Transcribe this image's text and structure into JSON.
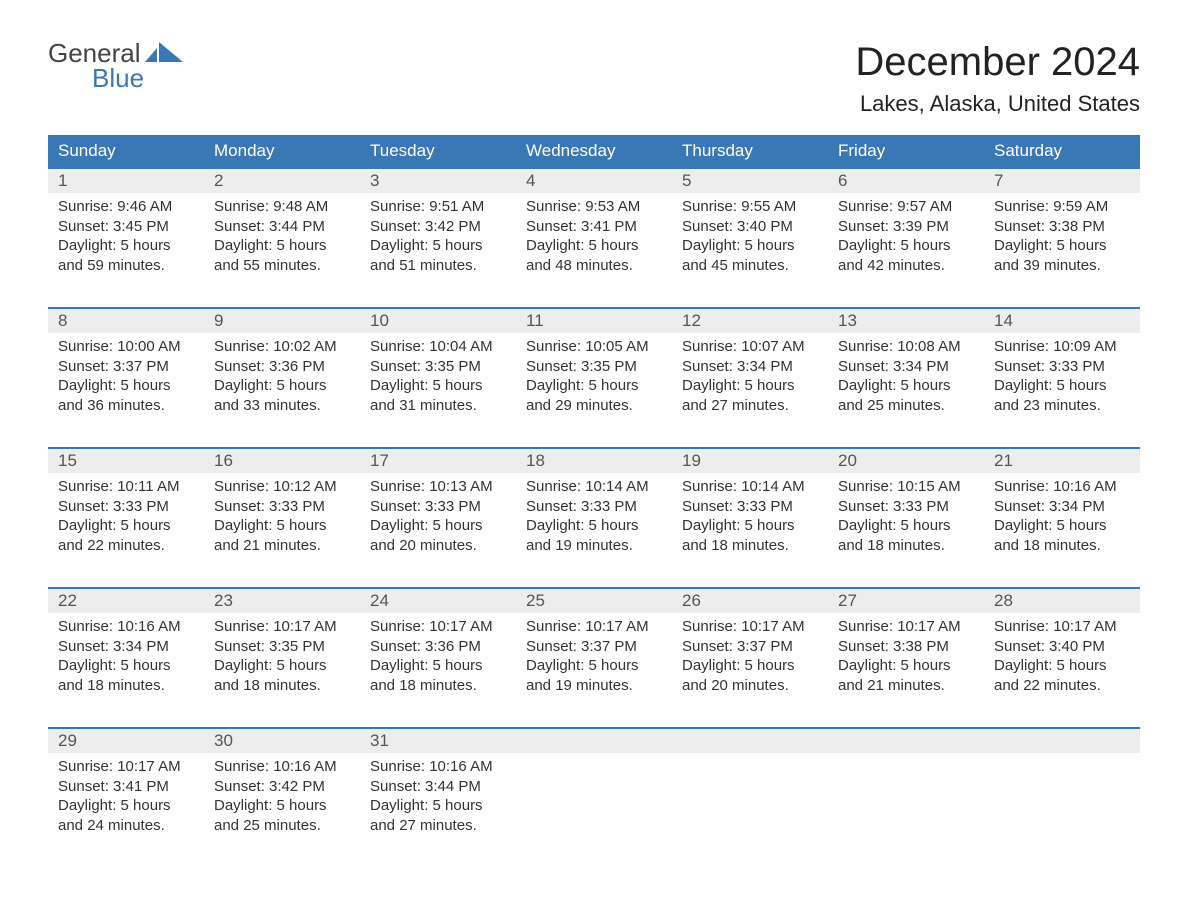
{
  "brand": {
    "line1": "General",
    "line2": "Blue"
  },
  "title": "December 2024",
  "location": "Lakes, Alaska, United States",
  "colors": {
    "header_bg": "#3a78b5",
    "header_text": "#ffffff",
    "daynum_bg": "#ededed",
    "body_text": "#333333",
    "brand_blue": "#3a78b5"
  },
  "day_names": [
    "Sunday",
    "Monday",
    "Tuesday",
    "Wednesday",
    "Thursday",
    "Friday",
    "Saturday"
  ],
  "weeks": [
    [
      {
        "n": "1",
        "sr": "Sunrise: 9:46 AM",
        "ss": "Sunset: 3:45 PM",
        "d1": "Daylight: 5 hours",
        "d2": "and 59 minutes."
      },
      {
        "n": "2",
        "sr": "Sunrise: 9:48 AM",
        "ss": "Sunset: 3:44 PM",
        "d1": "Daylight: 5 hours",
        "d2": "and 55 minutes."
      },
      {
        "n": "3",
        "sr": "Sunrise: 9:51 AM",
        "ss": "Sunset: 3:42 PM",
        "d1": "Daylight: 5 hours",
        "d2": "and 51 minutes."
      },
      {
        "n": "4",
        "sr": "Sunrise: 9:53 AM",
        "ss": "Sunset: 3:41 PM",
        "d1": "Daylight: 5 hours",
        "d2": "and 48 minutes."
      },
      {
        "n": "5",
        "sr": "Sunrise: 9:55 AM",
        "ss": "Sunset: 3:40 PM",
        "d1": "Daylight: 5 hours",
        "d2": "and 45 minutes."
      },
      {
        "n": "6",
        "sr": "Sunrise: 9:57 AM",
        "ss": "Sunset: 3:39 PM",
        "d1": "Daylight: 5 hours",
        "d2": "and 42 minutes."
      },
      {
        "n": "7",
        "sr": "Sunrise: 9:59 AM",
        "ss": "Sunset: 3:38 PM",
        "d1": "Daylight: 5 hours",
        "d2": "and 39 minutes."
      }
    ],
    [
      {
        "n": "8",
        "sr": "Sunrise: 10:00 AM",
        "ss": "Sunset: 3:37 PM",
        "d1": "Daylight: 5 hours",
        "d2": "and 36 minutes."
      },
      {
        "n": "9",
        "sr": "Sunrise: 10:02 AM",
        "ss": "Sunset: 3:36 PM",
        "d1": "Daylight: 5 hours",
        "d2": "and 33 minutes."
      },
      {
        "n": "10",
        "sr": "Sunrise: 10:04 AM",
        "ss": "Sunset: 3:35 PM",
        "d1": "Daylight: 5 hours",
        "d2": "and 31 minutes."
      },
      {
        "n": "11",
        "sr": "Sunrise: 10:05 AM",
        "ss": "Sunset: 3:35 PM",
        "d1": "Daylight: 5 hours",
        "d2": "and 29 minutes."
      },
      {
        "n": "12",
        "sr": "Sunrise: 10:07 AM",
        "ss": "Sunset: 3:34 PM",
        "d1": "Daylight: 5 hours",
        "d2": "and 27 minutes."
      },
      {
        "n": "13",
        "sr": "Sunrise: 10:08 AM",
        "ss": "Sunset: 3:34 PM",
        "d1": "Daylight: 5 hours",
        "d2": "and 25 minutes."
      },
      {
        "n": "14",
        "sr": "Sunrise: 10:09 AM",
        "ss": "Sunset: 3:33 PM",
        "d1": "Daylight: 5 hours",
        "d2": "and 23 minutes."
      }
    ],
    [
      {
        "n": "15",
        "sr": "Sunrise: 10:11 AM",
        "ss": "Sunset: 3:33 PM",
        "d1": "Daylight: 5 hours",
        "d2": "and 22 minutes."
      },
      {
        "n": "16",
        "sr": "Sunrise: 10:12 AM",
        "ss": "Sunset: 3:33 PM",
        "d1": "Daylight: 5 hours",
        "d2": "and 21 minutes."
      },
      {
        "n": "17",
        "sr": "Sunrise: 10:13 AM",
        "ss": "Sunset: 3:33 PM",
        "d1": "Daylight: 5 hours",
        "d2": "and 20 minutes."
      },
      {
        "n": "18",
        "sr": "Sunrise: 10:14 AM",
        "ss": "Sunset: 3:33 PM",
        "d1": "Daylight: 5 hours",
        "d2": "and 19 minutes."
      },
      {
        "n": "19",
        "sr": "Sunrise: 10:14 AM",
        "ss": "Sunset: 3:33 PM",
        "d1": "Daylight: 5 hours",
        "d2": "and 18 minutes."
      },
      {
        "n": "20",
        "sr": "Sunrise: 10:15 AM",
        "ss": "Sunset: 3:33 PM",
        "d1": "Daylight: 5 hours",
        "d2": "and 18 minutes."
      },
      {
        "n": "21",
        "sr": "Sunrise: 10:16 AM",
        "ss": "Sunset: 3:34 PM",
        "d1": "Daylight: 5 hours",
        "d2": "and 18 minutes."
      }
    ],
    [
      {
        "n": "22",
        "sr": "Sunrise: 10:16 AM",
        "ss": "Sunset: 3:34 PM",
        "d1": "Daylight: 5 hours",
        "d2": "and 18 minutes."
      },
      {
        "n": "23",
        "sr": "Sunrise: 10:17 AM",
        "ss": "Sunset: 3:35 PM",
        "d1": "Daylight: 5 hours",
        "d2": "and 18 minutes."
      },
      {
        "n": "24",
        "sr": "Sunrise: 10:17 AM",
        "ss": "Sunset: 3:36 PM",
        "d1": "Daylight: 5 hours",
        "d2": "and 18 minutes."
      },
      {
        "n": "25",
        "sr": "Sunrise: 10:17 AM",
        "ss": "Sunset: 3:37 PM",
        "d1": "Daylight: 5 hours",
        "d2": "and 19 minutes."
      },
      {
        "n": "26",
        "sr": "Sunrise: 10:17 AM",
        "ss": "Sunset: 3:37 PM",
        "d1": "Daylight: 5 hours",
        "d2": "and 20 minutes."
      },
      {
        "n": "27",
        "sr": "Sunrise: 10:17 AM",
        "ss": "Sunset: 3:38 PM",
        "d1": "Daylight: 5 hours",
        "d2": "and 21 minutes."
      },
      {
        "n": "28",
        "sr": "Sunrise: 10:17 AM",
        "ss": "Sunset: 3:40 PM",
        "d1": "Daylight: 5 hours",
        "d2": "and 22 minutes."
      }
    ],
    [
      {
        "n": "29",
        "sr": "Sunrise: 10:17 AM",
        "ss": "Sunset: 3:41 PM",
        "d1": "Daylight: 5 hours",
        "d2": "and 24 minutes."
      },
      {
        "n": "30",
        "sr": "Sunrise: 10:16 AM",
        "ss": "Sunset: 3:42 PM",
        "d1": "Daylight: 5 hours",
        "d2": "and 25 minutes."
      },
      {
        "n": "31",
        "sr": "Sunrise: 10:16 AM",
        "ss": "Sunset: 3:44 PM",
        "d1": "Daylight: 5 hours",
        "d2": "and 27 minutes."
      },
      null,
      null,
      null,
      null
    ]
  ]
}
